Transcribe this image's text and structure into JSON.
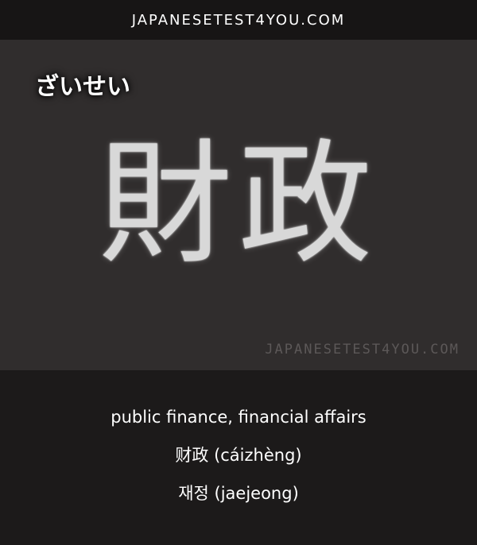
{
  "header": {
    "site": "JAPANESETEST4YOU.COM"
  },
  "card": {
    "reading": "ざいせい",
    "kanji": "財政",
    "watermark": "JAPANESETEST4YOU.COM"
  },
  "meanings": {
    "english": "public finance, financial affairs",
    "chinese": "财政 (cáizhèng)",
    "korean": "재정 (jaejeong)"
  }
}
